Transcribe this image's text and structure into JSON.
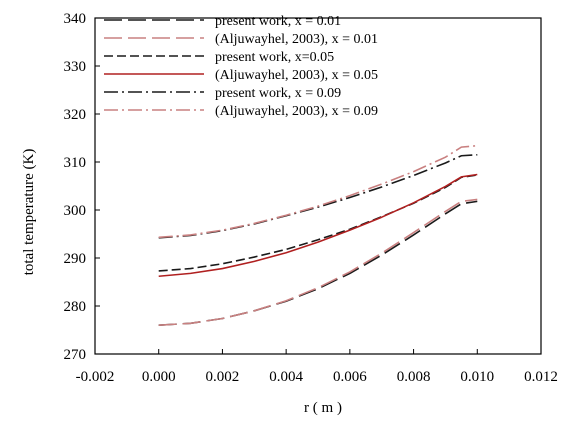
{
  "chart_data": {
    "type": "line",
    "xlabel": "r ( m )",
    "ylabel": "total temperature (K)",
    "xlim": [
      -0.002,
      0.012
    ],
    "ylim": [
      270,
      340
    ],
    "xticks": [
      -0.002,
      0.0,
      0.002,
      0.004,
      0.006,
      0.008,
      0.01,
      0.012
    ],
    "yticks": [
      270,
      280,
      290,
      300,
      310,
      320,
      330,
      340
    ],
    "xtick_labels": [
      "-0.002",
      "0.000",
      "0.002",
      "0.004",
      "0.006",
      "0.008",
      "0.010",
      "0.012"
    ],
    "ytick_labels": [
      "270",
      "280",
      "290",
      "300",
      "310",
      "320",
      "330",
      "340"
    ],
    "grid": false,
    "legend_position": "top-left",
    "series": [
      {
        "name": "present work, x = 0.01",
        "color": "#1a1a1a",
        "dash": "long-dash",
        "x": [
          0.0,
          0.001,
          0.002,
          0.003,
          0.004,
          0.005,
          0.006,
          0.007,
          0.008,
          0.009,
          0.0095,
          0.01
        ],
        "y": [
          276.0,
          276.4,
          277.4,
          279.0,
          281.0,
          283.6,
          286.8,
          290.6,
          294.8,
          299.2,
          301.3,
          301.8
        ]
      },
      {
        "name": "(Aljuwayhel, 2003), x = 0.01",
        "color": "#c98080",
        "dash": "long-dash",
        "x": [
          0.0,
          0.001,
          0.002,
          0.003,
          0.004,
          0.005,
          0.006,
          0.007,
          0.008,
          0.009,
          0.0095,
          0.01
        ],
        "y": [
          276.0,
          276.4,
          277.4,
          279.0,
          281.1,
          283.8,
          287.1,
          291.0,
          295.3,
          299.7,
          301.8,
          302.2
        ]
      },
      {
        "name": "present work, x=0.05",
        "color": "#1a1a1a",
        "dash": "short-dash",
        "x": [
          0.0,
          0.001,
          0.002,
          0.003,
          0.004,
          0.005,
          0.006,
          0.007,
          0.008,
          0.009,
          0.0095,
          0.01
        ],
        "y": [
          287.3,
          287.8,
          288.8,
          290.2,
          291.8,
          293.8,
          296.0,
          298.6,
          301.4,
          304.7,
          306.8,
          307.3
        ]
      },
      {
        "name": "(Aljuwayhel, 2003),  x = 0.05",
        "color": "#b02020",
        "dash": "solid",
        "x": [
          0.0,
          0.001,
          0.002,
          0.003,
          0.004,
          0.005,
          0.006,
          0.007,
          0.008,
          0.009,
          0.0095,
          0.01
        ],
        "y": [
          286.2,
          286.8,
          287.8,
          289.3,
          291.1,
          293.3,
          295.8,
          298.5,
          301.5,
          304.9,
          306.9,
          307.4
        ]
      },
      {
        "name": "present work, x = 0.09",
        "color": "#1a1a1a",
        "dash": "dash-dot",
        "x": [
          0.0,
          0.001,
          0.002,
          0.003,
          0.004,
          0.005,
          0.006,
          0.007,
          0.008,
          0.009,
          0.0095,
          0.01
        ],
        "y": [
          294.2,
          294.7,
          295.7,
          297.1,
          298.8,
          300.6,
          302.6,
          304.8,
          307.2,
          309.8,
          311.3,
          311.5
        ]
      },
      {
        "name": "(Aljuwayhel, 2003), x = 0.09",
        "color": "#c98080",
        "dash": "dash-dot",
        "x": [
          0.0,
          0.001,
          0.002,
          0.003,
          0.004,
          0.005,
          0.006,
          0.007,
          0.008,
          0.009,
          0.0095,
          0.01
        ],
        "y": [
          294.3,
          294.8,
          295.8,
          297.2,
          298.9,
          300.8,
          303.0,
          305.4,
          308.0,
          311.0,
          313.1,
          313.4
        ]
      }
    ]
  }
}
